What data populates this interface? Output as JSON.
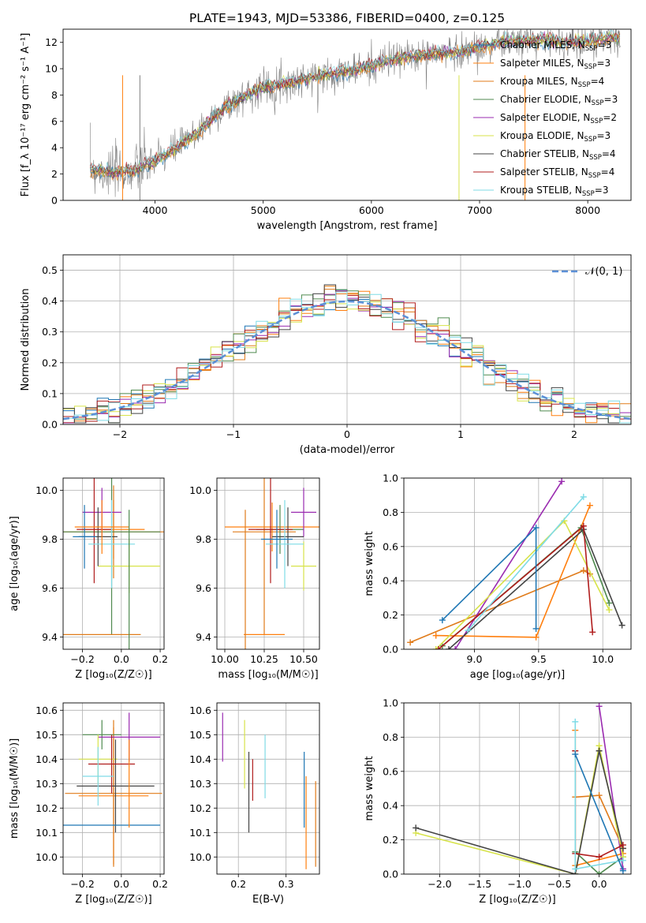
{
  "figure_title": "PLATE=1943, MJD=53386, FIBERID=0400, z=0.125",
  "models": [
    {
      "label": "Chabrier MILES, N",
      "n": "=3",
      "color": "#1f77b4"
    },
    {
      "label": "Salpeter MILES, N",
      "n": "=3",
      "color": "#ff7f0e"
    },
    {
      "label": "Kroupa MILES, N",
      "n": "=4",
      "color": "#e07b1a"
    },
    {
      "label": "Chabrier ELODIE, N",
      "n": "=3",
      "color": "#4f8a4f"
    },
    {
      "label": "Salpeter ELODIE, N",
      "n": "=2",
      "color": "#9a2bb0"
    },
    {
      "label": "Kroupa ELODIE, N",
      "n": "=3",
      "color": "#d7e34a"
    },
    {
      "label": "Chabrier STELIB, N",
      "n": "=4",
      "color": "#444444"
    },
    {
      "label": "Salpeter STELIB, N",
      "n": "=4",
      "color": "#b01c1c"
    },
    {
      "label": "Kroupa STELIB, N",
      "n": "=3",
      "color": "#7fdbe6"
    }
  ],
  "ssp_subscript": "SSP",
  "chart_data": [
    {
      "type": "line",
      "id": "spectrum",
      "xlabel": "wavelength [Angstrom, rest frame]",
      "ylabel": "Flux [f_λ 10⁻¹⁷ erg cm⁻² s⁻¹ A⁻¹]",
      "xlim": [
        3150,
        8400
      ],
      "ylim": [
        0,
        13
      ],
      "xticks": [
        4000,
        5000,
        6000,
        7000,
        8000
      ],
      "yticks": [
        0,
        2,
        4,
        6,
        8,
        10,
        12
      ],
      "data_color": "#808080",
      "model_trend": {
        "x": [
          3400,
          3600,
          3800,
          4000,
          4200,
          4400,
          4600,
          4800,
          5000,
          5200,
          5400,
          5600,
          5800,
          6000,
          6200,
          6400,
          6600,
          6800,
          7000,
          7200,
          7400,
          7600,
          7800,
          8000,
          8200
        ],
        "y": [
          2.4,
          2.1,
          2.2,
          3.0,
          4.0,
          5.2,
          6.8,
          7.8,
          8.6,
          8.9,
          9.2,
          9.6,
          9.8,
          10.2,
          10.7,
          11.0,
          11.1,
          11.3,
          11.6,
          12.0,
          12.1,
          12.2,
          12.0,
          12.1,
          12.3
        ]
      }
    },
    {
      "type": "histogram",
      "id": "residuals",
      "xlabel": "(data-model)/error",
      "ylabel": "Normed distribution",
      "xlim": [
        -2.5,
        2.5
      ],
      "ylim": [
        0,
        0.55
      ],
      "xticks": [
        -2,
        -1,
        0,
        1,
        2
      ],
      "yticks": [
        0.0,
        0.1,
        0.2,
        0.3,
        0.4,
        0.5
      ],
      "reference_label": "𝒩(0, 1)",
      "bin_width": 0.1,
      "bins_start": -2.5
    },
    {
      "type": "scatter",
      "id": "age_vs_Z",
      "xlabel": "Z [log₁₀(Z/Z☉)]",
      "ylabel": "age  [log₁₀(age/yr)]",
      "xlim": [
        -0.3,
        0.22
      ],
      "ylim": [
        9.35,
        10.05
      ],
      "xticks": [
        -0.2,
        0.0,
        0.2
      ],
      "yticks": [
        9.4,
        9.6,
        9.8,
        10.0
      ],
      "points": [
        {
          "x": -0.04,
          "y": 9.84,
          "xe": 0.16,
          "ye": 0.12
        },
        {
          "x": -0.04,
          "y": 9.83,
          "xe": 0.26,
          "ye": 0.19
        },
        {
          "x": -0.05,
          "y": 9.83,
          "xe": 0.25,
          "ye": 0.42
        },
        {
          "x": -0.1,
          "y": 9.91,
          "xe": 0.1,
          "ye": 0.1
        },
        {
          "x": 0.04,
          "y": 9.69,
          "xe": 0.16,
          "ye": 0.11
        },
        {
          "x": -0.12,
          "y": 9.81,
          "xe": 0.1,
          "ye": 0.12
        },
        {
          "x": -0.14,
          "y": 9.84,
          "xe": 0.09,
          "ye": 0.22
        },
        {
          "x": -0.05,
          "y": 9.78,
          "xe": 0.12,
          "ye": 0.18
        },
        {
          "x": -0.19,
          "y": 9.81,
          "xe": 0.06,
          "ye": 0.13
        },
        {
          "x": -0.1,
          "y": 9.85,
          "xe": 0.14,
          "ye": 0.11
        },
        {
          "x": -0.1,
          "y": 9.41,
          "xe": 0.2,
          "ye": 0.0
        },
        {
          "x": 0.04,
          "y": 9.62,
          "xe": 0.0,
          "ye": 0.3
        }
      ]
    },
    {
      "type": "scatter",
      "id": "age_vs_mass",
      "xlabel": "mass [log₁₀(M/M☉)]",
      "ylabel": "",
      "xlim": [
        9.95,
        10.6
      ],
      "ylim": [
        9.35,
        10.05
      ],
      "xticks": [
        10.0,
        10.25,
        10.5
      ],
      "yticks": [
        9.4,
        9.6,
        9.8,
        10.0
      ],
      "points": [
        {
          "x": 10.3,
          "y": 9.85,
          "xe": 0.3,
          "ye": 0.1
        },
        {
          "x": 10.25,
          "y": 9.83,
          "xe": 0.2,
          "ye": 0.42
        },
        {
          "x": 10.35,
          "y": 9.84,
          "xe": 0.15,
          "ye": 0.1
        },
        {
          "x": 10.5,
          "y": 9.91,
          "xe": 0.08,
          "ye": 0.1
        },
        {
          "x": 10.5,
          "y": 9.69,
          "xe": 0.08,
          "ye": 0.1
        },
        {
          "x": 10.4,
          "y": 9.81,
          "xe": 0.1,
          "ye": 0.12
        },
        {
          "x": 10.29,
          "y": 9.84,
          "xe": 0.14,
          "ye": 0.22
        },
        {
          "x": 10.38,
          "y": 9.78,
          "xe": 0.12,
          "ye": 0.18
        },
        {
          "x": 10.33,
          "y": 9.8,
          "xe": 0.1,
          "ye": 0.12
        },
        {
          "x": 10.25,
          "y": 9.41,
          "xe": 0.13,
          "ye": 0.0
        },
        {
          "x": 10.13,
          "y": 9.62,
          "xe": 0.0,
          "ye": 0.3
        }
      ]
    },
    {
      "type": "line",
      "id": "mw_vs_age",
      "xlabel": "age  [log₁₀(age/yr)]",
      "ylabel": "mass weight",
      "xlim": [
        8.45,
        10.22
      ],
      "ylim": [
        0,
        1
      ],
      "xticks": [
        9.0,
        9.5,
        10.0
      ],
      "yticks": [
        0.0,
        0.2,
        0.4,
        0.6,
        0.8,
        1.0
      ]
    },
    {
      "type": "scatter",
      "id": "mass_vs_Z",
      "xlabel": "Z [log₁₀(Z/Z☉)]",
      "ylabel": "mass [log₁₀(M/M☉)]",
      "xlim": [
        -0.3,
        0.22
      ],
      "ylim": [
        9.93,
        10.63
      ],
      "xticks": [
        -0.2,
        0.0,
        0.2
      ],
      "yticks": [
        10.0,
        10.1,
        10.2,
        10.3,
        10.4,
        10.5,
        10.6
      ],
      "points": [
        {
          "x": -0.04,
          "y": 10.25,
          "xe": 0.18,
          "ye": 0.28
        },
        {
          "x": -0.04,
          "y": 10.26,
          "xe": 0.25,
          "ye": 0.3
        },
        {
          "x": -0.1,
          "y": 10.5,
          "xe": 0.1,
          "ye": 0.06
        },
        {
          "x": 0.04,
          "y": 10.49,
          "xe": 0.16,
          "ye": 0.1
        },
        {
          "x": -0.12,
          "y": 10.4,
          "xe": 0.1,
          "ye": 0.1
        },
        {
          "x": -0.03,
          "y": 10.29,
          "xe": 0.2,
          "ye": 0.19
        },
        {
          "x": -0.05,
          "y": 10.38,
          "xe": 0.12,
          "ye": 0.12
        },
        {
          "x": -0.12,
          "y": 10.33,
          "xe": 0.08,
          "ye": 0.12
        },
        {
          "x": -0.05,
          "y": 10.13,
          "xe": 0.25,
          "ye": 0.0
        },
        {
          "x": 0.04,
          "y": 10.3,
          "xe": 0.0,
          "ye": 0.18
        }
      ]
    },
    {
      "type": "scatter",
      "id": "mass_vs_EBV",
      "xlabel": "E(B-V)",
      "ylabel": "",
      "xlim": [
        0.155,
        0.37
      ],
      "ylim": [
        9.93,
        10.63
      ],
      "xticks": [
        0.2,
        0.3
      ],
      "yticks": [
        10.0,
        10.1,
        10.2,
        10.3,
        10.4,
        10.5,
        10.6
      ],
      "segments": [
        {
          "x": 0.167,
          "y0": 10.39,
          "y1": 10.59
        },
        {
          "x": 0.213,
          "y0": 10.28,
          "y1": 10.56
        },
        {
          "x": 0.222,
          "y0": 10.1,
          "y1": 10.43
        },
        {
          "x": 0.23,
          "y0": 10.23,
          "y1": 10.4
        },
        {
          "x": 0.256,
          "y0": 10.24,
          "y1": 10.5
        },
        {
          "x": 0.338,
          "y0": 10.12,
          "y1": 10.43
        },
        {
          "x": 0.342,
          "y0": 9.95,
          "y1": 10.33
        },
        {
          "x": 0.362,
          "y0": 9.96,
          "y1": 10.31
        }
      ]
    },
    {
      "type": "line",
      "id": "mw_vs_Z",
      "xlabel": "Z [log₁₀(Z/Z☉)]",
      "ylabel": "mass weight",
      "xlim": [
        -2.45,
        0.4
      ],
      "ylim": [
        0,
        1
      ],
      "xticks": [
        -2.0,
        -1.5,
        -1.0,
        -0.5,
        0.0
      ],
      "yticks": [
        0.0,
        0.2,
        0.4,
        0.6,
        0.8,
        1.0
      ]
    }
  ]
}
